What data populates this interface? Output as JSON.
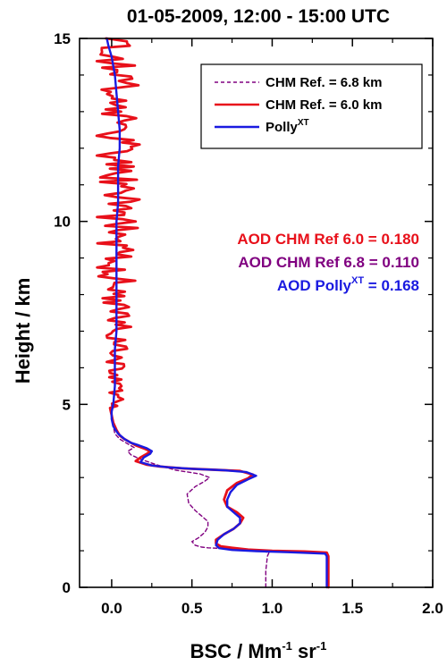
{
  "chart_data": {
    "type": "line",
    "title": "01-05-2009, 12:00 - 15:00 UTC",
    "xlabel": {
      "main": "BSC / Mm",
      "sup1": "-1",
      "mid": " sr",
      "sup2": "-1"
    },
    "ylabel": "Height / km",
    "xlim": [
      -0.2,
      2.0
    ],
    "ylim": [
      0,
      15
    ],
    "xticks": [
      "0.0",
      "0.5",
      "1.0",
      "1.5",
      "2.0"
    ],
    "yticks": [
      "0",
      "5",
      "10",
      "15"
    ],
    "colors": {
      "purple": "#800080",
      "red": "#e8101a",
      "blue": "#1a1ae0"
    },
    "legend_position": "top-right",
    "legend": [
      {
        "label": "CHM Ref. = 6.8 km",
        "sup": "",
        "color": "#800080",
        "style": "dashed"
      },
      {
        "label": "CHM Ref. = 6.0 km",
        "sup": "",
        "color": "#e8101a",
        "style": "solid"
      },
      {
        "label": "Polly",
        "sup": "XT",
        "color": "#1a1ae0",
        "style": "solid"
      }
    ],
    "annotations": [
      {
        "text": "AOD CHM Ref 6.0 = 0.180",
        "sup": "",
        "after": "",
        "color": "#e8101a"
      },
      {
        "text": "AOD CHM Ref 6.8 = 0.110",
        "sup": "",
        "after": "",
        "color": "#800080"
      },
      {
        "text": "AOD Polly",
        "sup": "XT",
        "after": " = 0.168",
        "color": "#1a1ae0"
      }
    ],
    "series": [
      {
        "name": "CHM Ref. = 6.8 km",
        "color": "#800080",
        "style": "dashed",
        "points": [
          [
            0.96,
            0
          ],
          [
            0.96,
            0.45
          ],
          [
            0.97,
            0.85
          ],
          [
            0.98,
            0.95
          ],
          [
            0.92,
            1.0
          ],
          [
            0.75,
            1.05
          ],
          [
            0.6,
            1.08
          ],
          [
            0.56,
            1.1
          ],
          [
            0.52,
            1.15
          ],
          [
            0.5,
            1.25
          ],
          [
            0.54,
            1.35
          ],
          [
            0.58,
            1.5
          ],
          [
            0.6,
            1.65
          ],
          [
            0.6,
            1.8
          ],
          [
            0.56,
            1.95
          ],
          [
            0.52,
            2.1
          ],
          [
            0.48,
            2.3
          ],
          [
            0.47,
            2.55
          ],
          [
            0.52,
            2.75
          ],
          [
            0.58,
            2.9
          ],
          [
            0.61,
            3.0
          ],
          [
            0.55,
            3.1
          ],
          [
            0.4,
            3.2
          ],
          [
            0.28,
            3.35
          ],
          [
            0.18,
            3.5
          ],
          [
            0.12,
            3.62
          ],
          [
            0.1,
            3.72
          ],
          [
            0.14,
            3.82
          ],
          [
            0.1,
            3.92
          ],
          [
            0.05,
            4.05
          ],
          [
            0.02,
            4.2
          ],
          [
            0.01,
            4.4
          ],
          [
            0.0,
            4.7
          ],
          [
            0.0,
            5.0
          ]
        ]
      },
      {
        "name": "CHM Ref. = 6.0 km",
        "color": "#e8101a",
        "style": "solid",
        "points": [
          [
            1.35,
            0
          ],
          [
            1.35,
            0.45
          ],
          [
            1.35,
            0.85
          ],
          [
            1.34,
            0.95
          ],
          [
            1.2,
            0.98
          ],
          [
            1.0,
            1.0
          ],
          [
            0.85,
            1.03
          ],
          [
            0.75,
            1.08
          ],
          [
            0.68,
            1.12
          ],
          [
            0.65,
            1.2
          ],
          [
            0.65,
            1.3
          ],
          [
            0.7,
            1.45
          ],
          [
            0.76,
            1.6
          ],
          [
            0.8,
            1.75
          ],
          [
            0.82,
            1.9
          ],
          [
            0.78,
            2.05
          ],
          [
            0.72,
            2.2
          ],
          [
            0.7,
            2.4
          ],
          [
            0.72,
            2.65
          ],
          [
            0.78,
            2.85
          ],
          [
            0.85,
            2.98
          ],
          [
            0.88,
            3.08
          ],
          [
            0.8,
            3.18
          ],
          [
            0.6,
            3.22
          ],
          [
            0.45,
            3.25
          ],
          [
            0.3,
            3.3
          ],
          [
            0.22,
            3.35
          ],
          [
            0.15,
            3.45
          ],
          [
            0.18,
            3.55
          ],
          [
            0.22,
            3.65
          ],
          [
            0.24,
            3.72
          ],
          [
            0.2,
            3.8
          ],
          [
            0.15,
            3.88
          ],
          [
            0.12,
            3.95
          ],
          [
            0.08,
            4.05
          ],
          [
            0.05,
            4.15
          ],
          [
            0.03,
            4.3
          ],
          [
            0.01,
            4.5
          ],
          [
            0.0,
            4.7
          ],
          [
            -0.01,
            4.9
          ]
        ]
      },
      {
        "name": "Polly",
        "color": "#1a1ae0",
        "style": "solid",
        "points": [
          [
            1.34,
            0
          ],
          [
            1.34,
            0.45
          ],
          [
            1.34,
            0.85
          ],
          [
            1.33,
            0.92
          ],
          [
            1.1,
            0.96
          ],
          [
            0.9,
            0.99
          ],
          [
            0.75,
            1.02
          ],
          [
            0.67,
            1.07
          ],
          [
            0.65,
            1.15
          ],
          [
            0.66,
            1.3
          ],
          [
            0.7,
            1.45
          ],
          [
            0.76,
            1.6
          ],
          [
            0.8,
            1.75
          ],
          [
            0.8,
            1.9
          ],
          [
            0.76,
            2.05
          ],
          [
            0.72,
            2.2
          ],
          [
            0.72,
            2.4
          ],
          [
            0.74,
            2.6
          ],
          [
            0.78,
            2.8
          ],
          [
            0.85,
            2.95
          ],
          [
            0.9,
            3.05
          ],
          [
            0.84,
            3.15
          ],
          [
            0.7,
            3.2
          ],
          [
            0.5,
            3.24
          ],
          [
            0.35,
            3.28
          ],
          [
            0.25,
            3.33
          ],
          [
            0.18,
            3.42
          ],
          [
            0.2,
            3.55
          ],
          [
            0.24,
            3.65
          ],
          [
            0.25,
            3.72
          ],
          [
            0.22,
            3.8
          ],
          [
            0.17,
            3.88
          ],
          [
            0.12,
            3.95
          ],
          [
            0.08,
            4.05
          ],
          [
            0.04,
            4.2
          ],
          [
            0.01,
            4.4
          ],
          [
            0.0,
            4.6
          ],
          [
            0.0,
            4.8
          ],
          [
            0.01,
            5.0
          ],
          [
            0.02,
            5.5
          ],
          [
            0.02,
            6.0
          ],
          [
            0.02,
            6.5
          ],
          [
            0.03,
            7.0
          ],
          [
            0.03,
            7.5
          ],
          [
            0.03,
            8.0
          ],
          [
            0.03,
            8.5
          ],
          [
            0.03,
            9.0
          ],
          [
            0.03,
            9.5
          ],
          [
            0.03,
            10.0
          ],
          [
            0.04,
            10.5
          ],
          [
            0.04,
            11.0
          ],
          [
            0.04,
            11.5
          ],
          [
            0.05,
            12.0
          ],
          [
            0.05,
            12.5
          ],
          [
            0.04,
            13.0
          ],
          [
            0.03,
            13.5
          ],
          [
            0.02,
            14.0
          ],
          [
            0.0,
            14.5
          ],
          [
            -0.02,
            14.8
          ],
          [
            -0.03,
            15.0
          ]
        ]
      }
    ]
  }
}
